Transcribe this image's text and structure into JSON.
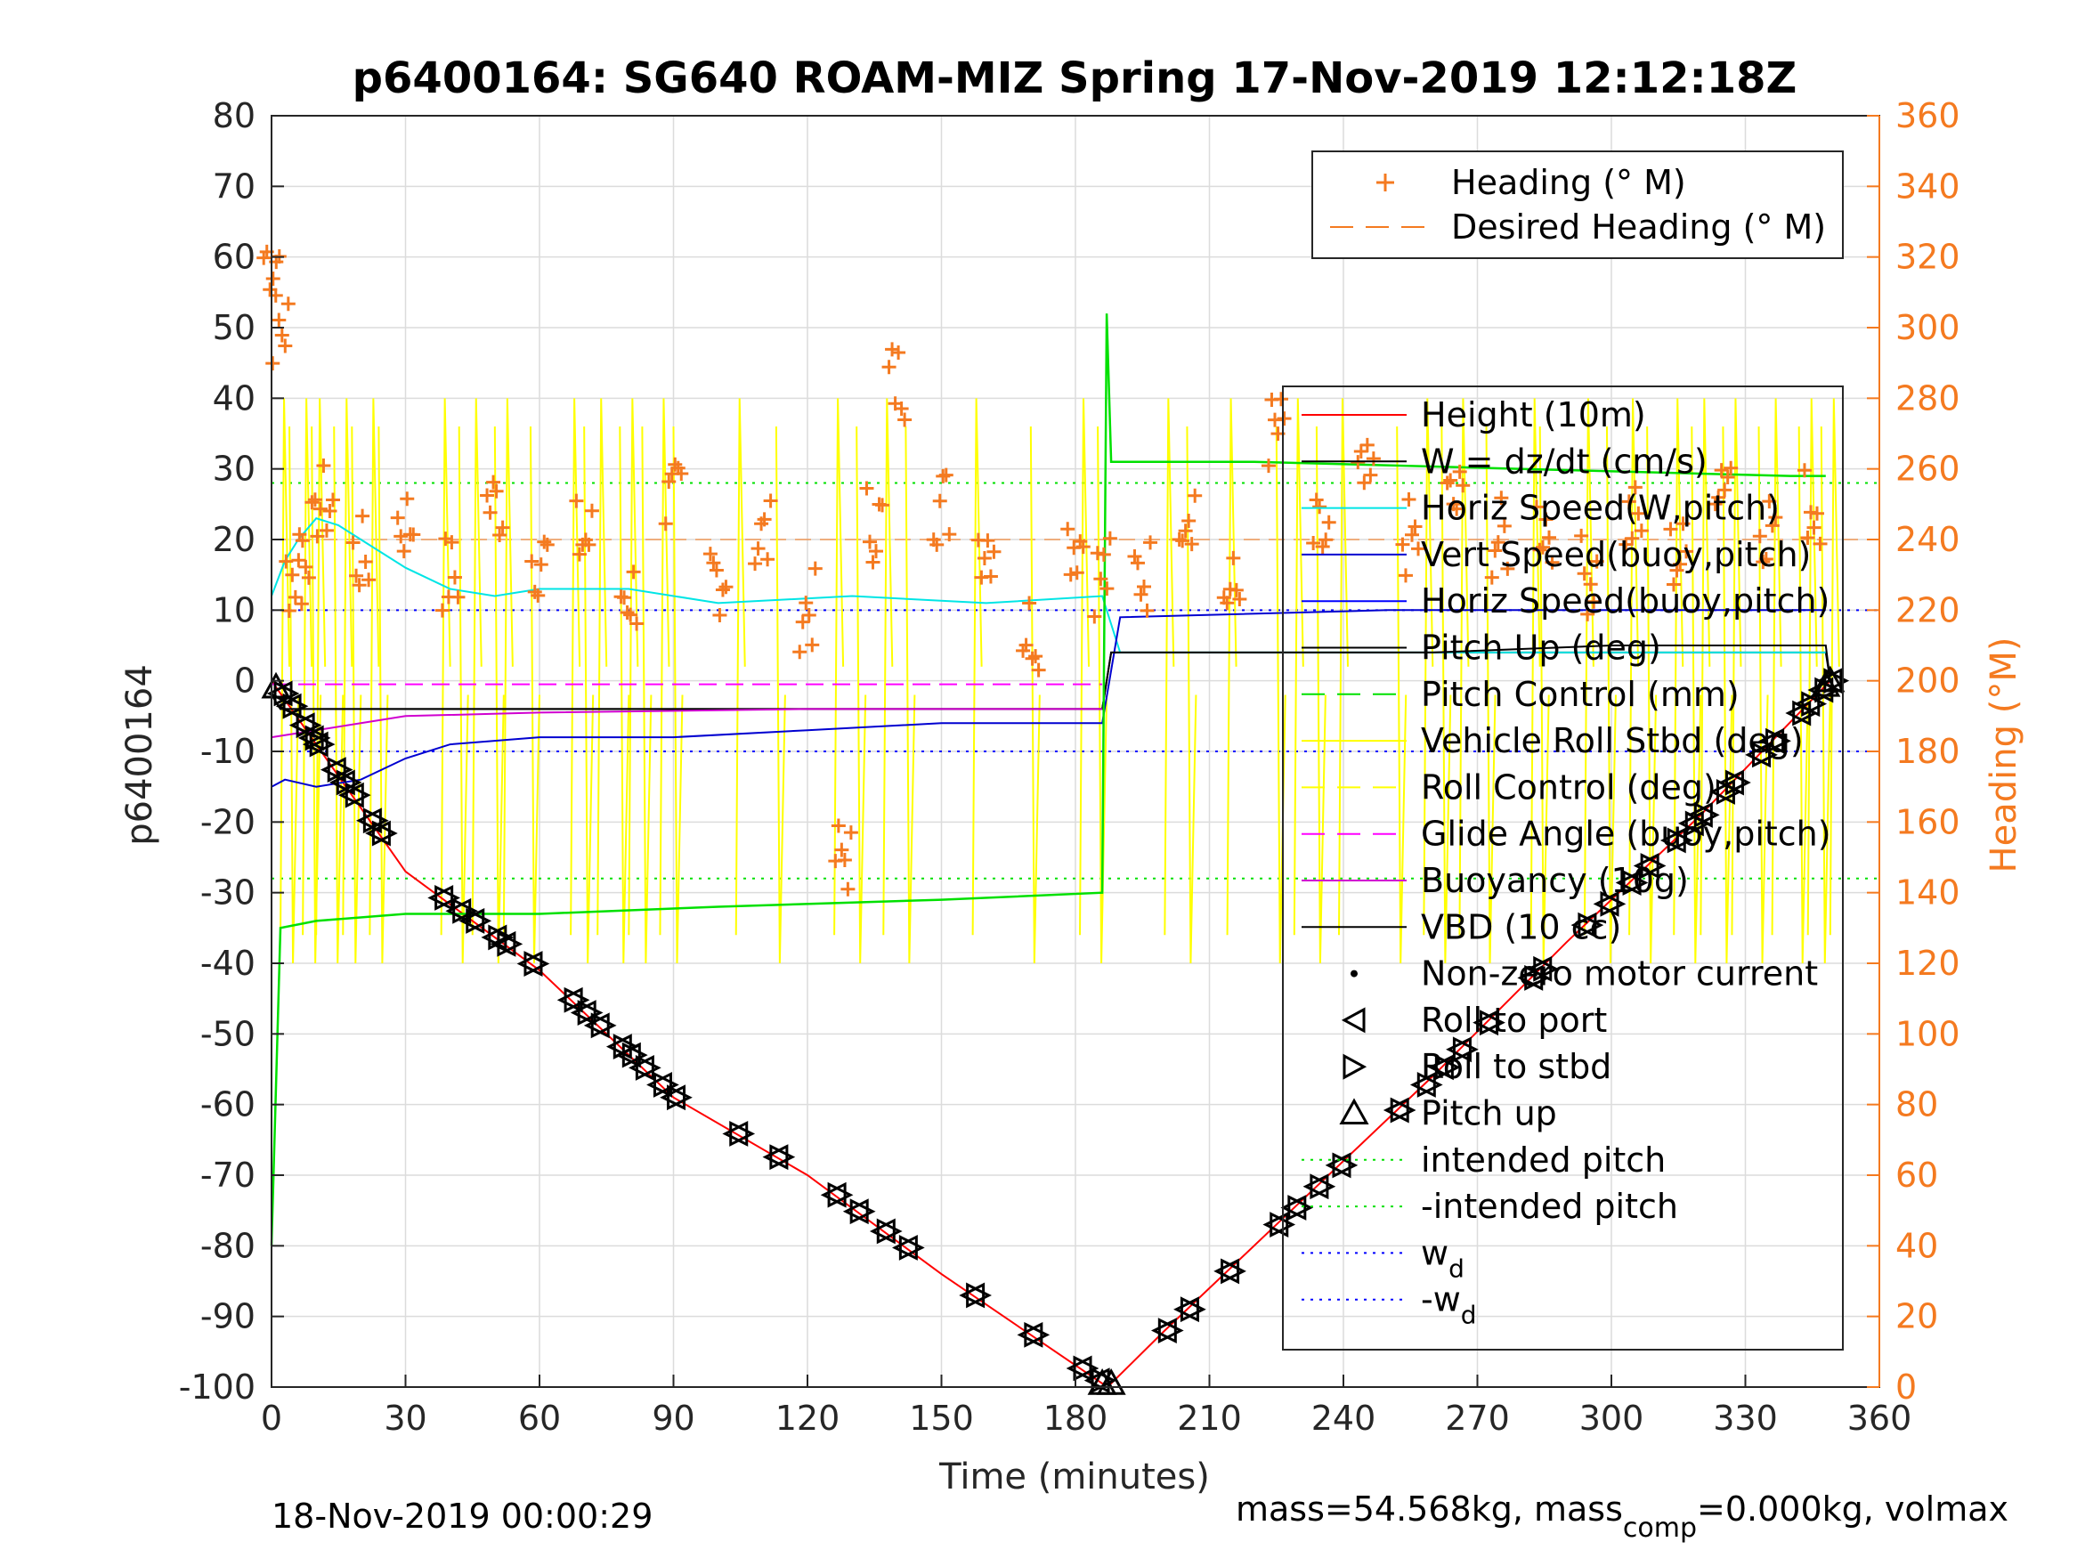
{
  "chart_data": {
    "type": "line",
    "title": "p6400164: SG640 ROAM-MIZ Spring 17-Nov-2019 12:12:18Z",
    "xlabel": "Time (minutes)",
    "ylabel_left": "p6400164",
    "ylabel_right": "Heading (°M)",
    "xlim": [
      0,
      360
    ],
    "ylim_left": [
      -100,
      80
    ],
    "ylim_right": [
      0,
      360
    ],
    "x_ticks": [
      0,
      30,
      60,
      90,
      120,
      150,
      180,
      210,
      240,
      270,
      300,
      330,
      360
    ],
    "y_ticks_left": [
      80,
      70,
      60,
      50,
      40,
      30,
      20,
      10,
      0,
      -10,
      -20,
      -30,
      -40,
      -50,
      -60,
      -70,
      -80,
      -90,
      -100
    ],
    "y_ticks_right": [
      360,
      340,
      320,
      300,
      280,
      260,
      240,
      220,
      200,
      180,
      160,
      140,
      120,
      100,
      80,
      60,
      40,
      20,
      0
    ],
    "grid": true,
    "footer_left": "18-Nov-2019 00:00:29",
    "footer_right_pre": "mass=54.568kg, mass",
    "footer_right_sub": "comp",
    "footer_right_post": "=0.000kg, volmax",
    "colors": {
      "heading": "#f47a20",
      "height": "#ff0000",
      "w": "#000000",
      "horiz_w": "#00e5e5",
      "vert_buoy": "#0000d0",
      "horiz_buoy": "#0000ff",
      "pitch_up": "#000000",
      "pitch_control": "#00e000",
      "roll": "#ffff00",
      "roll_control": "#ffff00",
      "glide": "#ff00ff",
      "buoyancy": "#d000d0",
      "vbd": "#000000",
      "intended": "#00e000",
      "wd": "#0000ff"
    },
    "legend_top": {
      "position": "top-right",
      "entries": [
        {
          "label": "Heading (° M)",
          "marker": "+",
          "color": "#f47a20"
        },
        {
          "label": "Desired Heading (° M)",
          "line": "dashed",
          "color": "#f47a20"
        }
      ]
    },
    "legend_main": {
      "position": "right",
      "entries": [
        {
          "label": "Height (10m)",
          "color": "#ff0000",
          "line": "solid"
        },
        {
          "label": "W = dz/dt (cm/s)",
          "color": "#000000",
          "line": "solid"
        },
        {
          "label": "Horiz Speed(W,pitch)",
          "color": "#00e5e5",
          "line": "solid"
        },
        {
          "label": "Vert Speed(buoy,pitch)",
          "color": "#0000d0",
          "line": "solid"
        },
        {
          "label": "Horiz Speed(buoy,pitch)",
          "color": "#0000ff",
          "line": "solid"
        },
        {
          "label": "Pitch Up (deg)",
          "color": "#000000",
          "line": "solid"
        },
        {
          "label": "Pitch Control (mm)",
          "color": "#00e000",
          "line": "dashed"
        },
        {
          "label": "Vehicle Roll Stbd (deg)",
          "color": "#ffff00",
          "line": "solid"
        },
        {
          "label": "Roll Control (deg)",
          "color": "#ffff00",
          "line": "dashed"
        },
        {
          "label": "Glide Angle (buoy,pitch)",
          "color": "#ff00ff",
          "line": "dashed"
        },
        {
          "label": "Buoyancy (10g)",
          "color": "#d000d0",
          "line": "solid"
        },
        {
          "label": "VBD (10 cc)",
          "color": "#000000",
          "line": "solid"
        },
        {
          "label": "Non-zero motor current",
          "marker": "dot"
        },
        {
          "label": "Roll to port",
          "marker": "tri-left"
        },
        {
          "label": "Roll to stbd",
          "marker": "tri-right"
        },
        {
          "label": "Pitch up",
          "marker": "tri-up"
        },
        {
          "label": "intended pitch",
          "color": "#00e000",
          "line": "dotted"
        },
        {
          "label": "-intended pitch",
          "color": "#00e000",
          "line": "dotted"
        },
        {
          "label": "w",
          "sub": "d",
          "color": "#0000ff",
          "line": "dotted"
        },
        {
          "label": "-w",
          "sub": "d",
          "color": "#0000ff",
          "line": "dotted"
        }
      ]
    },
    "reference_lines": {
      "intended_pitch": 28,
      "neg_intended_pitch": -28,
      "wd": 10,
      "neg_wd": -10,
      "desired_heading": 240
    },
    "series": [
      {
        "name": "Height (10m)",
        "axis": "left",
        "x": [
          0,
          30,
          60,
          90,
          120,
          150,
          186,
          188,
          200,
          230,
          260,
          290,
          320,
          349
        ],
        "y": [
          0,
          -27,
          -41,
          -59,
          -70,
          -84,
          -99.5,
          -99.5,
          -92,
          -74,
          -56,
          -37,
          -19,
          0
        ]
      },
      {
        "name": "W = dz/dt (cm/s)",
        "axis": "left",
        "x": [
          0,
          2,
          186,
          188,
          348,
          349
        ],
        "y": [
          -2,
          -4,
          -4,
          4,
          4,
          0
        ]
      },
      {
        "name": "Horiz Speed(W,pitch)",
        "axis": "left",
        "x": [
          0,
          3,
          6,
          10,
          15,
          20,
          30,
          40,
          50,
          60,
          80,
          100,
          130,
          160,
          186,
          190,
          250,
          300,
          348
        ],
        "y": [
          12,
          17,
          20,
          23,
          22,
          20,
          16,
          13,
          12,
          13,
          13,
          11,
          12,
          11,
          12,
          4,
          4,
          4,
          4
        ]
      },
      {
        "name": "Vert Speed(buoy,pitch)",
        "axis": "left",
        "x": [
          0,
          3,
          10,
          20,
          30,
          40,
          60,
          90,
          120,
          150,
          186,
          190,
          250,
          300,
          348
        ],
        "y": [
          -15,
          -14,
          -15,
          -14,
          -11,
          -9,
          -8,
          -8,
          -7,
          -6,
          -6,
          9,
          10,
          10,
          10
        ]
      },
      {
        "name": "Pitch Up (deg)",
        "axis": "left",
        "x": [
          0,
          2,
          186,
          188,
          260,
          300,
          348,
          349
        ],
        "y": [
          -2,
          -4,
          -4,
          4,
          4,
          5,
          5,
          0
        ]
      },
      {
        "name": "Pitch Control (mm)",
        "axis": "left",
        "x": [
          0,
          2,
          10,
          30,
          60,
          100,
          150,
          186,
          187,
          188,
          189,
          220,
          280,
          340,
          348
        ],
        "y": [
          -80,
          -35,
          -34,
          -33,
          -33,
          -32,
          -31,
          -30,
          52,
          31,
          31,
          31,
          30,
          29,
          29
        ]
      },
      {
        "name": "Glide Angle (buoy,pitch)",
        "axis": "left",
        "x": [
          0,
          186
        ],
        "y": [
          -0.5,
          -0.5
        ]
      },
      {
        "name": "Buoyancy (10g)",
        "axis": "left",
        "x": [
          0,
          10,
          20,
          30,
          60,
          120,
          186
        ],
        "y": [
          -8,
          -7,
          -6,
          -5,
          -4.5,
          -4,
          -4
        ]
      },
      {
        "name": "Heading (° M)",
        "axis": "right",
        "marker": "+",
        "x": [
          0,
          2,
          5,
          8,
          12,
          20,
          30,
          40,
          50,
          60,
          70,
          80,
          90,
          100,
          110,
          120,
          128,
          135,
          140,
          150,
          160,
          170,
          180,
          186,
          195,
          205,
          215,
          225,
          235,
          245,
          255,
          265,
          275,
          285,
          295,
          305,
          315,
          325,
          335,
          345
        ],
        "y": [
          320,
          300,
          230,
          240,
          250,
          235,
          245,
          230,
          250,
          235,
          240,
          225,
          250,
          230,
          240,
          220,
          150,
          245,
          285,
          250,
          240,
          215,
          240,
          230,
          230,
          250,
          225,
          270,
          240,
          255,
          240,
          250,
          240,
          245,
          230,
          245,
          235,
          260,
          245,
          250
        ]
      }
    ],
    "markers": {
      "roll_events_x": [
        2,
        4,
        7,
        9,
        10,
        14,
        16,
        18,
        22,
        24,
        38,
        42,
        45,
        50,
        52,
        58,
        67,
        70,
        73,
        78,
        80,
        83,
        87,
        90,
        104,
        113,
        126,
        131,
        137,
        142,
        157,
        170,
        181,
        185,
        200,
        205,
        214,
        225,
        229,
        234,
        239,
        252,
        258,
        262,
        266,
        272,
        282,
        284,
        294,
        299,
        304,
        308,
        314,
        318,
        320,
        325,
        327,
        333,
        336,
        342,
        344,
        347,
        349
      ],
      "pitch_events_x": [
        1,
        186,
        188,
        348,
        349
      ]
    }
  }
}
